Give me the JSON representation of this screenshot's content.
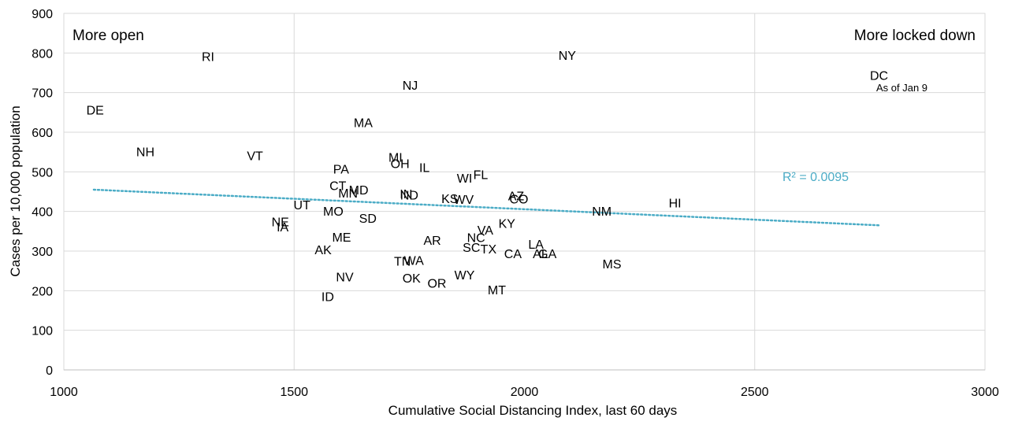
{
  "chart_data": {
    "type": "scatter",
    "xlabel": "Cumulative Social Distancing Index, last 60 days",
    "ylabel": "Cases per 10,000 population",
    "xlim": [
      1000,
      3000
    ],
    "ylim": [
      0,
      900
    ],
    "x_ticks": [
      1000,
      1500,
      2000,
      2500,
      3000
    ],
    "y_ticks": [
      0,
      100,
      200,
      300,
      400,
      500,
      600,
      700,
      800,
      900
    ],
    "grid": true,
    "grid_x_lines": [
      1500,
      2500
    ],
    "annotations": {
      "left": "More open",
      "right": "More locked down",
      "dc_note": "As of Jan 9"
    },
    "trendline": {
      "r2_label": "R² = 0.0095",
      "x_start": 1065,
      "y_start": 455,
      "x_end": 2770,
      "y_end": 365,
      "color": "#4bacc6"
    },
    "points": [
      {
        "label": "RI",
        "x": 1313,
        "y": 792
      },
      {
        "label": "NY",
        "x": 2093,
        "y": 795
      },
      {
        "label": "DC",
        "x": 2770,
        "y": 744
      },
      {
        "label": "NJ",
        "x": 1752,
        "y": 719
      },
      {
        "label": "DE",
        "x": 1068,
        "y": 657
      },
      {
        "label": "MA",
        "x": 1650,
        "y": 625
      },
      {
        "label": "NH",
        "x": 1177,
        "y": 551
      },
      {
        "label": "VT",
        "x": 1415,
        "y": 541
      },
      {
        "label": "MI",
        "x": 1720,
        "y": 537
      },
      {
        "label": "OH",
        "x": 1730,
        "y": 522
      },
      {
        "label": "IL",
        "x": 1783,
        "y": 512
      },
      {
        "label": "PA",
        "x": 1602,
        "y": 508
      },
      {
        "label": "FL",
        "x": 1905,
        "y": 494
      },
      {
        "label": "WI",
        "x": 1870,
        "y": 485
      },
      {
        "label": "CT",
        "x": 1595,
        "y": 466
      },
      {
        "label": "MD",
        "x": 1640,
        "y": 455
      },
      {
        "label": "MN",
        "x": 1617,
        "y": 447
      },
      {
        "label": "IN",
        "x": 1743,
        "y": 445
      },
      {
        "label": "ND",
        "x": 1750,
        "y": 442
      },
      {
        "label": "AZ",
        "x": 1982,
        "y": 440
      },
      {
        "label": "KS",
        "x": 1838,
        "y": 433
      },
      {
        "label": "WV",
        "x": 1868,
        "y": 431
      },
      {
        "label": "CO",
        "x": 1988,
        "y": 432
      },
      {
        "label": "HI",
        "x": 2327,
        "y": 422
      },
      {
        "label": "UT",
        "x": 1517,
        "y": 417
      },
      {
        "label": "MO",
        "x": 1585,
        "y": 401
      },
      {
        "label": "NM",
        "x": 2168,
        "y": 401
      },
      {
        "label": "SD",
        "x": 1660,
        "y": 383
      },
      {
        "label": "NE",
        "x": 1470,
        "y": 375
      },
      {
        "label": "KY",
        "x": 1962,
        "y": 371
      },
      {
        "label": "IA",
        "x": 1475,
        "y": 362
      },
      {
        "label": "VA",
        "x": 1915,
        "y": 354
      },
      {
        "label": "ME",
        "x": 1603,
        "y": 336
      },
      {
        "label": "NC",
        "x": 1895,
        "y": 335
      },
      {
        "label": "AR",
        "x": 1800,
        "y": 328
      },
      {
        "label": "LA",
        "x": 2025,
        "y": 318
      },
      {
        "label": "SC",
        "x": 1885,
        "y": 310
      },
      {
        "label": "TX",
        "x": 1922,
        "y": 306
      },
      {
        "label": "AK",
        "x": 1563,
        "y": 304
      },
      {
        "label": "CA",
        "x": 1975,
        "y": 294
      },
      {
        "label": "AL",
        "x": 2035,
        "y": 294
      },
      {
        "label": "GA",
        "x": 2050,
        "y": 294
      },
      {
        "label": "TN",
        "x": 1735,
        "y": 275
      },
      {
        "label": "WA",
        "x": 1760,
        "y": 277
      },
      {
        "label": "MS",
        "x": 2190,
        "y": 268
      },
      {
        "label": "WY",
        "x": 1870,
        "y": 240
      },
      {
        "label": "NV",
        "x": 1610,
        "y": 235
      },
      {
        "label": "OK",
        "x": 1755,
        "y": 232
      },
      {
        "label": "OR",
        "x": 1810,
        "y": 220
      },
      {
        "label": "MT",
        "x": 1940,
        "y": 203
      },
      {
        "label": "ID",
        "x": 1573,
        "y": 186
      }
    ]
  }
}
